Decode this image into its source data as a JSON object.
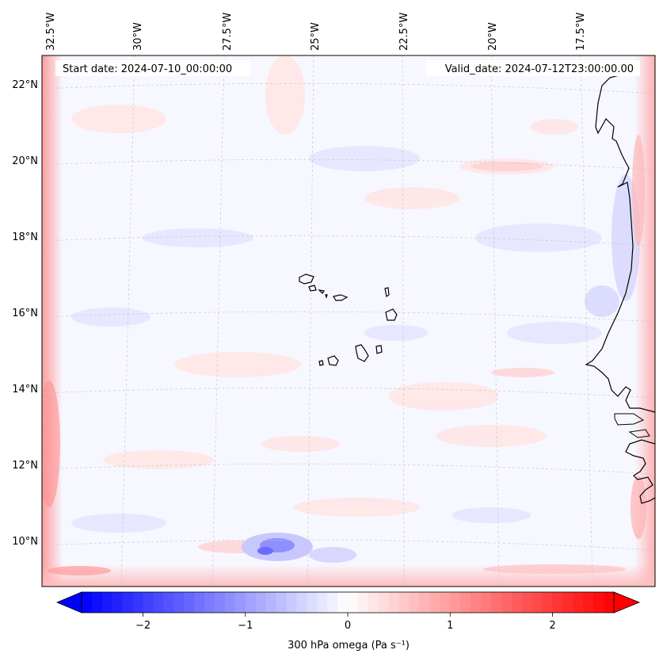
{
  "map": {
    "start_label": "Start date: 2024-07-10_00:00:00",
    "valid_label": "Valid_date: 2024-07-12T23:00:00.00",
    "lon_labels": [
      "32.5°W",
      "30°W",
      "27.5°W",
      "25°W",
      "22.5°W",
      "20°W",
      "17.5°W"
    ],
    "lat_labels": [
      "22°N",
      "20°N",
      "18°N",
      "16°N",
      "14°N",
      "12°N",
      "10°N"
    ],
    "field": "300 hPa omega (Pa s⁻¹)"
  },
  "colorbar": {
    "label": "300 hPa omega (Pa s⁻¹)",
    "ticks": [
      "−2",
      "−1",
      "0",
      "1",
      "2"
    ],
    "tick_values": [
      -2,
      -1,
      0,
      1,
      2
    ],
    "range": [
      -2.6,
      2.6
    ],
    "negative_color": "#0000ff",
    "zero_color": "#ffffff",
    "positive_color": "#ff0000",
    "extend": "both"
  }
}
